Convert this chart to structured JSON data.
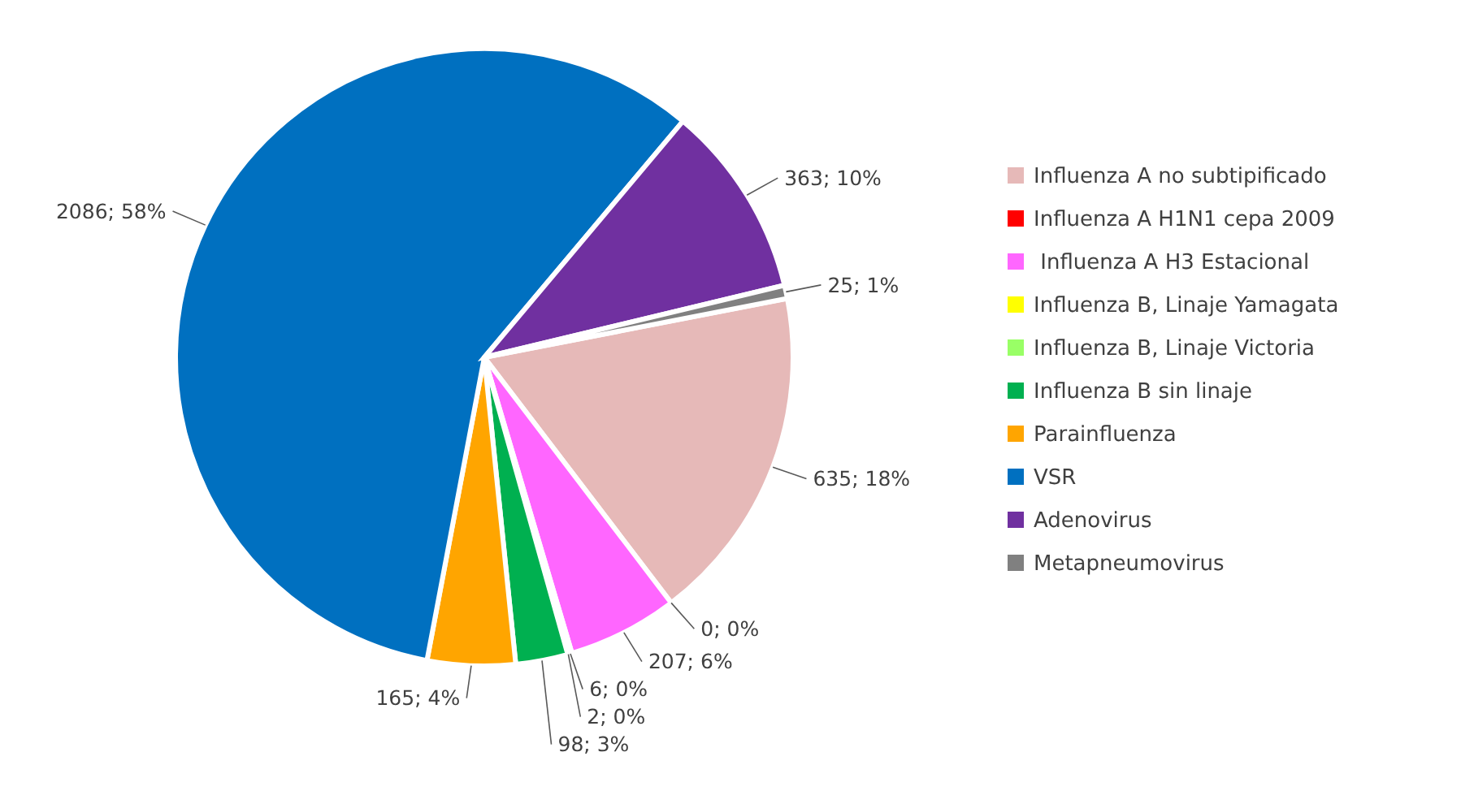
{
  "chart_data": {
    "type": "pie",
    "categories": [
      "Influenza A no subtipificado",
      "Influenza A H1N1 cepa 2009",
      " Influenza A H3 Estacional",
      "Influenza B, Linaje Yamagata",
      "Influenza B, Linaje Victoria",
      "Influenza B sin linaje",
      "Parainfluenza",
      "VSR",
      "Adenovirus",
      "Metapneumovirus"
    ],
    "values": [
      635,
      0,
      207,
      6,
      2,
      98,
      165,
      2086,
      363,
      25
    ],
    "value_labels": [
      "635; 18%",
      "0; 0%",
      "207; 6%",
      "6; 0%",
      "2; 0%",
      "98; 3%",
      "165; 4%",
      "2086; 58%",
      "363; 10%",
      "25; 1%"
    ],
    "colors": [
      "#e6b9b8",
      "#ff0000",
      "#ff66ff",
      "#ffff00",
      "#99ff66",
      "#00b050",
      "#ffa500",
      "#0070c0",
      "#7030a0",
      "#808080"
    ],
    "legend": "right"
  }
}
